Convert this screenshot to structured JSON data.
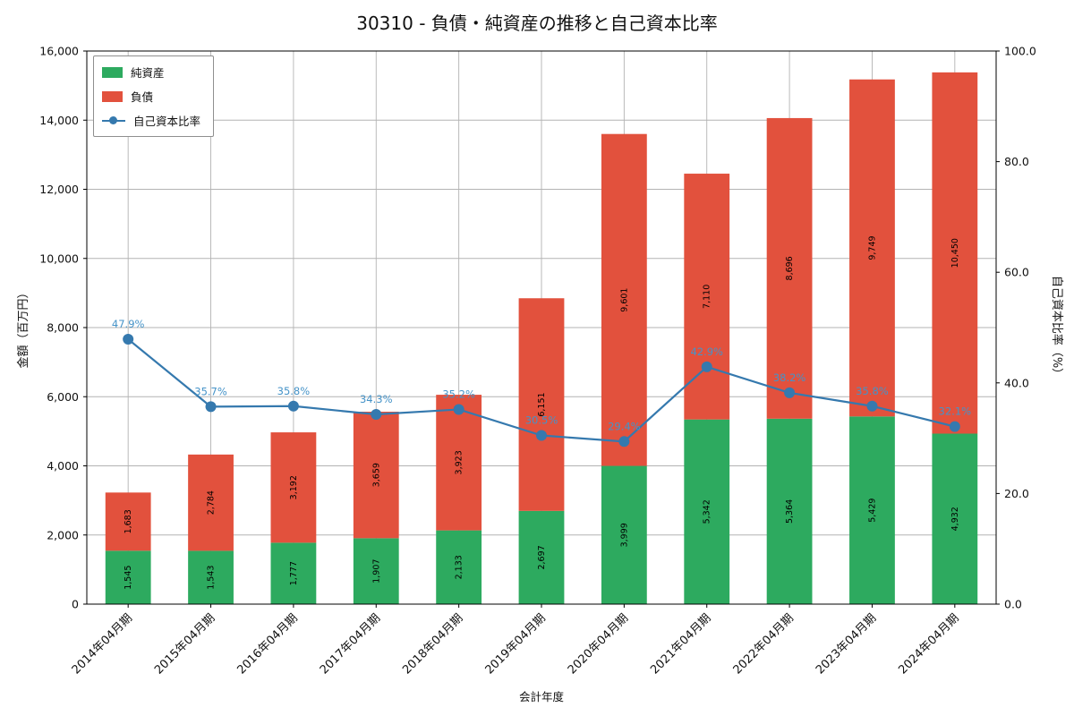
{
  "title": "30310 - 負債・純資産の推移と自己資本比率",
  "chart_data": {
    "type": "bar",
    "stacked": true,
    "categories": [
      "2014年04月期",
      "2015年04月期",
      "2016年04月期",
      "2017年04月期",
      "2018年04月期",
      "2019年04月期",
      "2020年04月期",
      "2021年04月期",
      "2022年04月期",
      "2023年04月期",
      "2024年04月期"
    ],
    "series": [
      {
        "name": "純資産",
        "color": "#2daa5f",
        "values": [
          1545,
          1543,
          1777,
          1907,
          2133,
          2697,
          3999,
          5342,
          5364,
          5429,
          4932
        ],
        "labels": [
          "1,545",
          "1,543",
          "1,777",
          "1,907",
          "2,133",
          "2,697",
          "3,999",
          "5,342",
          "5,364",
          "5,429",
          "4,932"
        ]
      },
      {
        "name": "負債",
        "color": "#e2513d",
        "values": [
          1683,
          2784,
          3192,
          3659,
          3923,
          6151,
          9601,
          7110,
          8696,
          9749,
          10450
        ],
        "labels": [
          "1,683",
          "2,784",
          "3,192",
          "3,659",
          "3,923",
          "6,151",
          "9,601",
          "7,110",
          "8,696",
          "9,749",
          "10,450"
        ]
      }
    ],
    "line_series": {
      "name": "自己資本比率",
      "color": "#3579ae",
      "label_color": "#4593c8",
      "values": [
        47.9,
        35.7,
        35.8,
        34.3,
        35.2,
        30.5,
        29.4,
        42.9,
        38.2,
        35.8,
        32.1
      ],
      "labels": [
        "47.9%",
        "35.7%",
        "35.8%",
        "34.3%",
        "35.2%",
        "30.5%",
        "29.4%",
        "42.9%",
        "38.2%",
        "35.8%",
        "32.1%"
      ]
    },
    "xlabel": "会計年度",
    "ylabel_left": "金額（百万円）",
    "ylabel_right": "自己資本比率（%）",
    "ylim_left": [
      0,
      16000
    ],
    "ylim_right": [
      0,
      100
    ],
    "yticks_left": [
      "0",
      "2,000",
      "4,000",
      "6,000",
      "8,000",
      "10,000",
      "12,000",
      "14,000",
      "16,000"
    ],
    "yticks_right": [
      "0.0",
      "20.0",
      "40.0",
      "60.0",
      "80.0",
      "100.0"
    ],
    "grid": true,
    "legend_position": "upper left",
    "grid_color": "#b3b3b3",
    "text_color": "#111111"
  }
}
